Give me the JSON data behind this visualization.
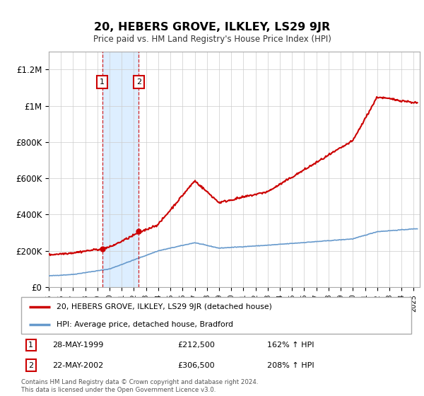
{
  "title": "20, HEBERS GROVE, ILKLEY, LS29 9JR",
  "subtitle": "Price paid vs. HM Land Registry's House Price Index (HPI)",
  "hpi_label": "HPI: Average price, detached house, Bradford",
  "property_label": "20, HEBERS GROVE, ILKLEY, LS29 9JR (detached house)",
  "footer": "Contains HM Land Registry data © Crown copyright and database right 2024.\nThis data is licensed under the Open Government Licence v3.0.",
  "sale1_label": "28-MAY-1999",
  "sale1_price": "£212,500",
  "sale1_hpi": "162% ↑ HPI",
  "sale1_date_num": 1999.4,
  "sale1_value": 212500,
  "sale2_label": "22-MAY-2002",
  "sale2_price": "£306,500",
  "sale2_hpi": "208% ↑ HPI",
  "sale2_date_num": 2002.4,
  "sale2_value": 306500,
  "red_color": "#cc0000",
  "blue_color": "#6699cc",
  "highlight_color": "#ddeeff",
  "box_color": "#cc0000",
  "ylim": [
    0,
    1300000
  ],
  "yticks": [
    0,
    200000,
    400000,
    600000,
    800000,
    1000000,
    1200000
  ],
  "ytick_labels": [
    "£0",
    "£200K",
    "£400K",
    "£600K",
    "£800K",
    "£1M",
    "£1.2M"
  ],
  "xmin": 1995,
  "xmax": 2025.5
}
